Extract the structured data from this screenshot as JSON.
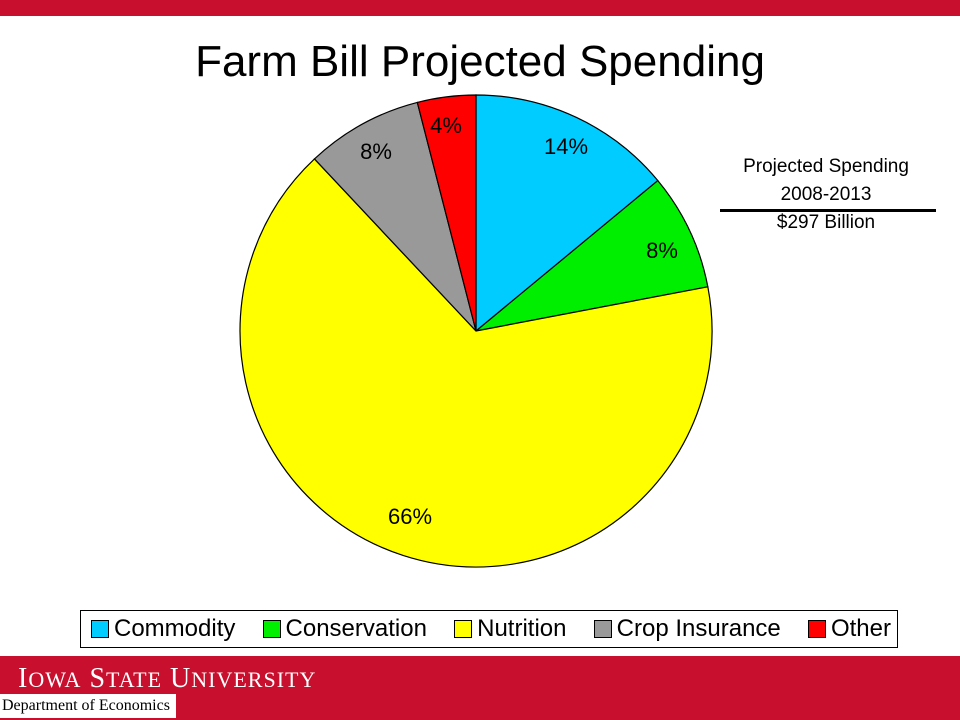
{
  "slide": {
    "title": "Farm Bill Projected Spending",
    "accent_color": "#c8102e"
  },
  "note": {
    "line1": "Projected Spending",
    "line2": "2008-2013",
    "line3": "$297 Billion"
  },
  "chart_data": {
    "type": "pie",
    "title": "Farm Bill Projected Spending",
    "categories": [
      "Commodity",
      "Conservation",
      "Nutrition",
      "Crop Insurance",
      "Other"
    ],
    "values": [
      14,
      8,
      66,
      8,
      4
    ],
    "labels": [
      "14%",
      "8%",
      "66%",
      "8%",
      "4%"
    ],
    "colors": [
      "#00ccff",
      "#00ee00",
      "#ffff00",
      "#999999",
      "#ff0000"
    ],
    "start_angle_deg": 0,
    "direction": "clockwise",
    "legend_position": "bottom"
  },
  "footer": {
    "university": {
      "i": "I",
      "owa": "OWA",
      "s": "S",
      "tate": "TATE",
      "u": "U",
      "niversity": "NIVERSITY"
    },
    "department": "Department of Economics"
  }
}
